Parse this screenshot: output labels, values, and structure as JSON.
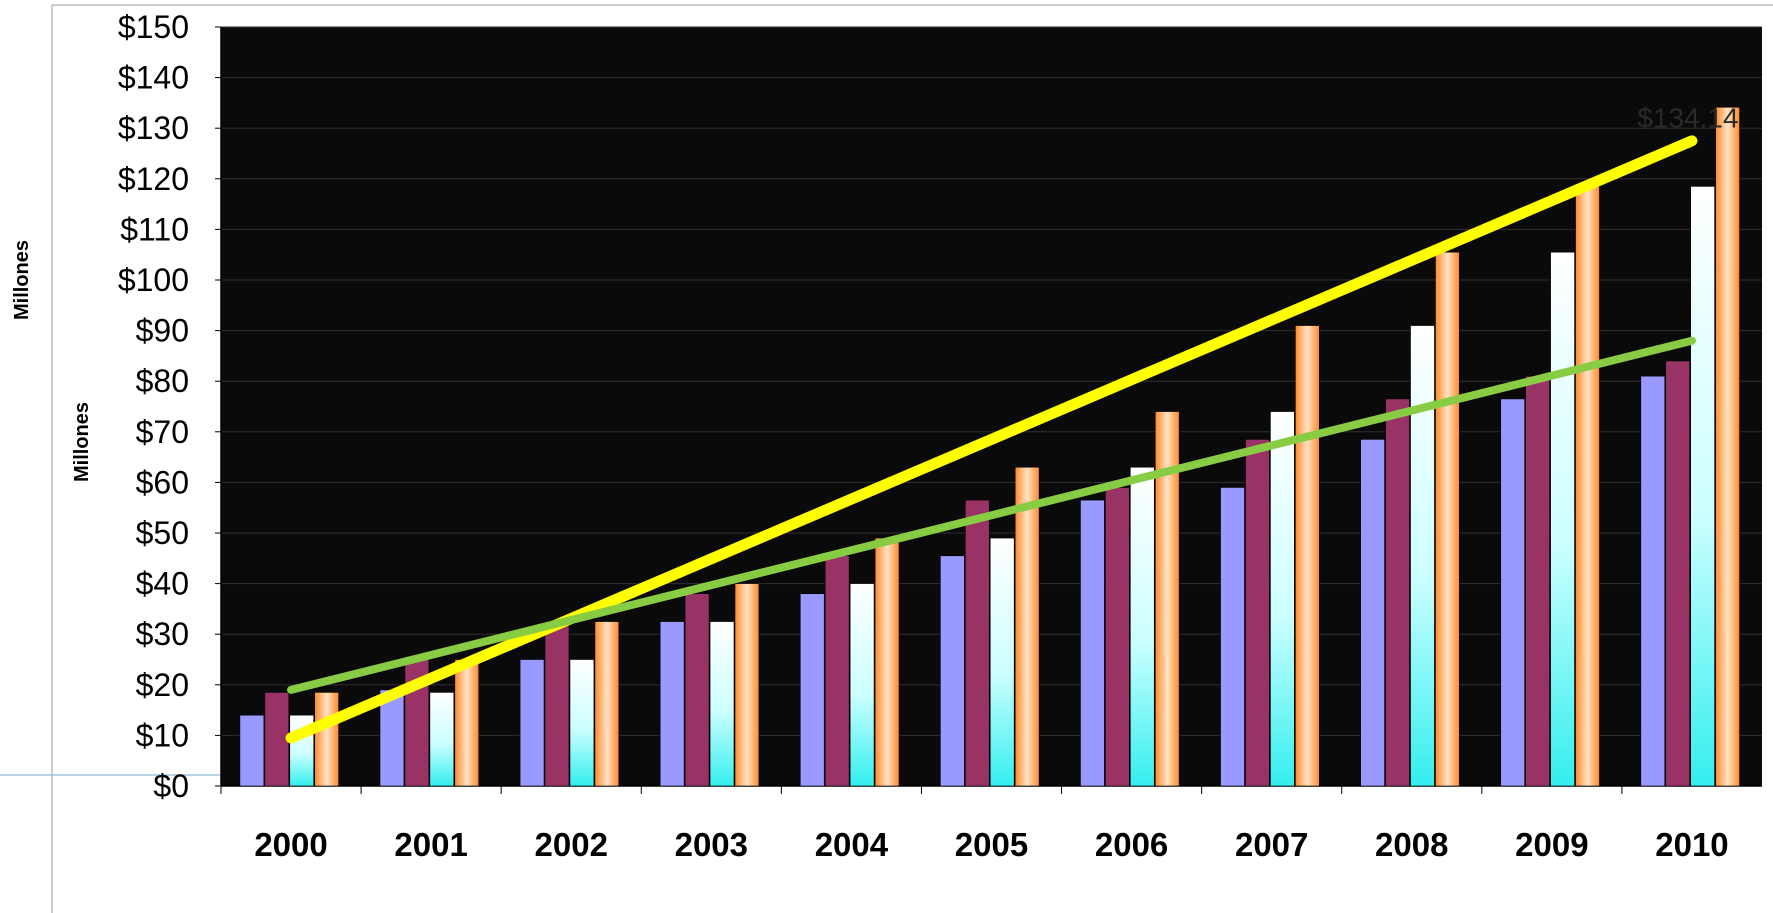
{
  "chart_data": {
    "type": "bar",
    "title": "",
    "xlabel": "",
    "ylabel": "Millones",
    "ylabel_secondary": "Millones",
    "categories": [
      "2000",
      "2001",
      "2002",
      "2003",
      "2004",
      "2005",
      "2006",
      "2007",
      "2008",
      "2009",
      "2010"
    ],
    "ylim": [
      0,
      150
    ],
    "yticks": [
      "$0",
      "$10",
      "$20",
      "$30",
      "$40",
      "$50",
      "$60",
      "$70",
      "$80",
      "$90",
      "$100",
      "$110",
      "$120",
      "$130",
      "$140",
      "$150"
    ],
    "grid": true,
    "series": [
      {
        "color": "#9999ff",
        "values": [
          14,
          19,
          25,
          32.5,
          38,
          45.5,
          56.5,
          59,
          68.5,
          76.5,
          81
        ]
      },
      {
        "color": "#993366",
        "values": [
          18.5,
          25,
          32.5,
          38,
          45.5,
          56.5,
          59,
          68.5,
          76.5,
          81,
          84
        ]
      },
      {
        "color": "#ccffff",
        "values": [
          14,
          18.5,
          25,
          32.5,
          40,
          49,
          63,
          74,
          91,
          105.5,
          118.5
        ]
      },
      {
        "color": "#ff9933",
        "values": [
          18.5,
          25,
          32.5,
          40,
          49,
          63,
          74,
          91,
          105.5,
          118.5,
          134.14
        ]
      }
    ],
    "trendlines": [
      {
        "color": "#ffff00",
        "start": 9.5,
        "end": 127.5
      },
      {
        "color": "#88cc44",
        "start": 19,
        "end": 88
      }
    ],
    "annotations": [
      {
        "text": "$134.14"
      }
    ],
    "colors": {
      "plot_background": "#0a0a0a",
      "gridline": "#303030",
      "axis": "#000000"
    }
  }
}
